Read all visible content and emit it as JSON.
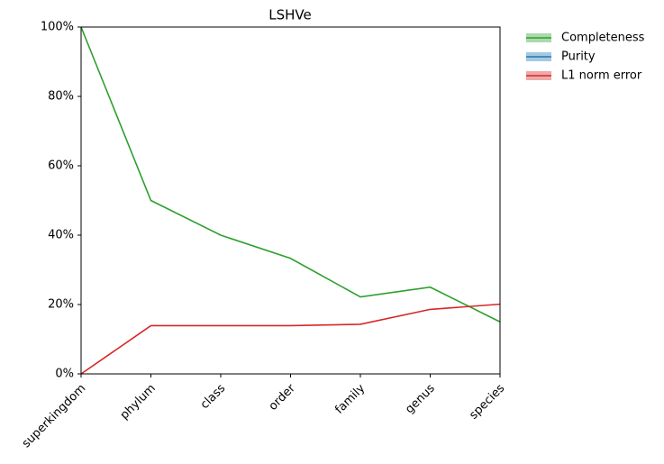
{
  "chart_data": {
    "type": "line",
    "title": "LSHVe",
    "categories": [
      "superkingdom",
      "phylum",
      "class",
      "order",
      "family",
      "genus",
      "species"
    ],
    "series": [
      {
        "name": "Completeness",
        "color": "#2ca02c",
        "values": [
          100,
          50,
          40,
          33.3,
          22.2,
          25,
          15
        ]
      },
      {
        "name": "Purity",
        "color": "#1f77b4",
        "values": [
          null,
          null,
          null,
          null,
          null,
          null,
          null
        ]
      },
      {
        "name": "L1 norm error",
        "color": "#d62728",
        "values": [
          0,
          13.9,
          13.9,
          13.9,
          14.3,
          18.6,
          20.1
        ]
      }
    ],
    "ylim": [
      0,
      100
    ],
    "yticks": [
      {
        "value": 0,
        "label": "0%"
      },
      {
        "value": 20,
        "label": "20%"
      },
      {
        "value": 40,
        "label": "40%"
      },
      {
        "value": 60,
        "label": "60%"
      },
      {
        "value": 80,
        "label": "80%"
      },
      {
        "value": 100,
        "label": "100%"
      }
    ],
    "grid": false,
    "legend": "outside right"
  }
}
